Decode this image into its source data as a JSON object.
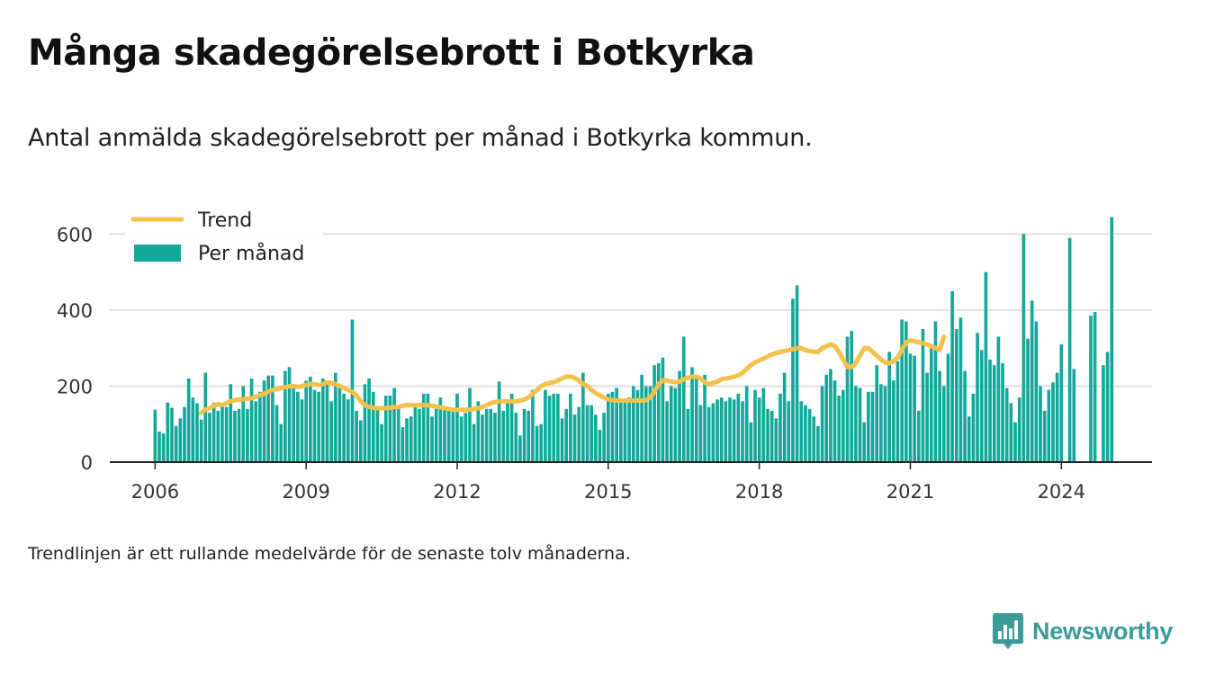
{
  "title": "Många skadegörelsebrott i Botkyrka",
  "subtitle": "Antal anmälda skadegörelsebrott per månad i Botkyrka kommun.",
  "note": "Trendlinjen är ett rullande medelvärde för de senaste tolv månaderna.",
  "brand": {
    "name": "Newsworthy"
  },
  "colors": {
    "bars": "#12a89a",
    "trend": "#f5c14b",
    "grid": "#d9d9d9",
    "axis": "#222222"
  },
  "chart_data": {
    "type": "bar",
    "grid": true,
    "legend_position": "top-left",
    "x_start": "2006-01",
    "xlim": [
      2005.1,
      2025.8
    ],
    "ylim": [
      0,
      660
    ],
    "xticks": [
      2006,
      2009,
      2012,
      2015,
      2018,
      2021,
      2024
    ],
    "yticks": [
      0,
      200,
      400,
      600
    ],
    "series": [
      {
        "name": "Per månad",
        "type": "bar",
        "values": [
          138,
          80,
          75,
          157,
          143,
          95,
          115,
          145,
          220,
          170,
          155,
          112,
          235,
          130,
          156,
          135,
          155,
          145,
          205,
          135,
          140,
          200,
          140,
          220,
          160,
          185,
          215,
          228,
          228,
          150,
          100,
          240,
          250,
          200,
          185,
          165,
          214,
          225,
          190,
          185,
          220,
          215,
          160,
          235,
          200,
          180,
          165,
          375,
          135,
          110,
          205,
          220,
          185,
          145,
          100,
          175,
          175,
          195,
          140,
          92,
          115,
          120,
          145,
          140,
          180,
          180,
          120,
          140,
          170,
          140,
          140,
          140,
          180,
          120,
          130,
          195,
          100,
          160,
          125,
          140,
          140,
          130,
          212,
          135,
          165,
          180,
          130,
          70,
          140,
          135,
          190,
          95,
          100,
          190,
          175,
          180,
          180,
          115,
          140,
          180,
          125,
          145,
          235,
          150,
          150,
          125,
          85,
          130,
          180,
          185,
          195,
          165,
          160,
          170,
          200,
          190,
          230,
          200,
          200,
          255,
          260,
          275,
          160,
          200,
          195,
          240,
          330,
          140,
          250,
          230,
          150,
          230,
          145,
          155,
          165,
          170,
          160,
          170,
          165,
          180,
          160,
          200,
          105,
          190,
          170,
          195,
          140,
          135,
          115,
          180,
          235,
          160,
          430,
          465,
          160,
          150,
          140,
          120,
          95,
          200,
          230,
          245,
          215,
          175,
          190,
          330,
          345,
          200,
          195,
          105,
          185,
          185,
          255,
          205,
          200,
          290,
          215,
          265,
          375,
          370,
          285,
          280,
          135,
          350,
          235,
          310,
          370,
          240,
          200,
          285,
          450,
          350,
          380,
          240,
          120,
          180,
          340,
          295,
          500,
          270,
          255,
          330,
          260,
          195,
          155,
          105,
          170,
          600,
          325,
          425,
          370,
          200,
          135,
          190,
          210,
          235,
          310,
          0,
          590,
          245,
          0,
          0,
          0,
          385,
          395,
          0,
          255,
          290,
          645
        ]
      },
      {
        "name": "Trend",
        "type": "line",
        "start": "2006-12",
        "values": [
          130,
          138,
          142,
          148,
          152,
          150,
          155,
          160,
          163,
          165,
          165,
          167,
          168,
          172,
          176,
          180,
          185,
          190,
          192,
          195,
          197,
          200,
          200,
          198,
          200,
          203,
          205,
          205,
          203,
          205,
          210,
          208,
          205,
          200,
          195,
          190,
          185,
          175,
          160,
          150,
          145,
          143,
          142,
          142,
          142,
          143,
          145,
          145,
          148,
          150,
          150,
          150,
          150,
          150,
          150,
          148,
          146,
          144,
          142,
          140,
          138,
          138,
          138,
          138,
          138,
          140,
          142,
          145,
          150,
          155,
          158,
          160,
          160,
          160,
          160,
          160,
          162,
          165,
          170,
          180,
          190,
          200,
          205,
          208,
          210,
          215,
          220,
          225,
          225,
          222,
          215,
          205,
          200,
          190,
          182,
          175,
          170,
          165,
          163,
          162,
          162,
          162,
          162,
          162,
          162,
          162,
          163,
          170,
          185,
          205,
          215,
          215,
          212,
          210,
          212,
          218,
          222,
          225,
          225,
          220,
          210,
          205,
          208,
          212,
          218,
          220,
          222,
          225,
          228,
          235,
          245,
          255,
          262,
          268,
          272,
          278,
          283,
          287,
          290,
          292,
          295,
          297,
          300,
          300,
          295,
          292,
          290,
          290,
          300,
          305,
          310,
          305,
          290,
          270,
          250,
          250,
          260,
          280,
          300,
          300,
          290,
          280,
          270,
          262,
          260,
          265,
          275,
          295,
          315,
          320,
          318,
          315,
          313,
          310,
          305,
          300,
          295,
          330
        ]
      }
    ]
  }
}
